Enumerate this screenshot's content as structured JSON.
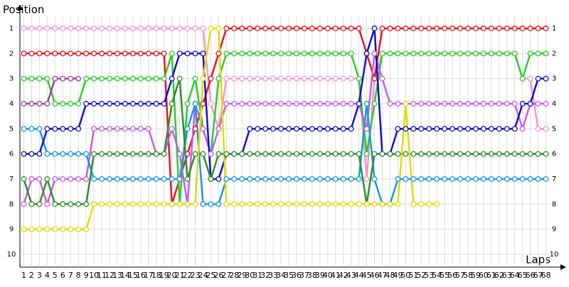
{
  "chart_data": {
    "type": "lap",
    "ylabel": "Position",
    "xlabel": "Laps",
    "x": [
      1,
      2,
      3,
      4,
      5,
      6,
      7,
      8,
      9,
      10,
      11,
      12,
      13,
      14,
      15,
      16,
      17,
      18,
      19,
      20,
      21,
      22,
      23,
      24,
      25,
      26,
      27,
      28,
      29,
      30,
      31,
      32,
      33,
      34,
      35,
      36,
      37,
      38,
      39,
      40,
      41,
      42,
      43,
      44,
      45,
      46,
      47,
      48,
      49,
      50,
      51,
      52,
      53,
      54,
      55,
      56,
      57,
      58,
      59,
      60,
      61,
      62,
      63,
      64,
      65,
      66,
      67,
      68
    ],
    "xlim": [
      0.5,
      68.5
    ],
    "ylim": [
      10.5,
      0.5
    ],
    "yticks": [
      1,
      2,
      3,
      4,
      5,
      6,
      7,
      8,
      9,
      10
    ],
    "grid": true,
    "series": [
      {
        "color": "#f49ac8",
        "values": [
          1,
          1,
          1,
          1,
          1,
          1,
          1,
          1,
          1,
          1,
          1,
          1,
          1,
          1,
          1,
          1,
          1,
          1,
          1,
          1,
          1,
          1,
          1,
          1,
          4,
          5,
          3,
          3,
          3,
          3,
          3,
          3,
          3,
          3,
          3,
          3,
          3,
          3,
          3,
          3,
          3,
          3,
          3,
          3,
          7,
          3,
          2,
          2,
          2,
          2,
          2,
          2,
          2,
          2,
          2,
          2,
          2,
          2,
          2,
          2,
          2,
          2,
          2,
          2,
          3,
          3,
          5,
          5
        ]
      },
      {
        "color": "#e8141e",
        "values": [
          2,
          2,
          2,
          2,
          2,
          2,
          2,
          2,
          2,
          2,
          2,
          2,
          2,
          2,
          2,
          2,
          2,
          2,
          2,
          8,
          7,
          6,
          5,
          4,
          3,
          2,
          1,
          1,
          1,
          1,
          1,
          1,
          1,
          1,
          1,
          1,
          1,
          1,
          1,
          1,
          1,
          1,
          1,
          1,
          2,
          3,
          1,
          1,
          1,
          1,
          1,
          1,
          1,
          1,
          1,
          1,
          1,
          1,
          1,
          1,
          1,
          1,
          1,
          1,
          1,
          1,
          1,
          1
        ]
      },
      {
        "color": "#2ecc2e",
        "values": [
          3,
          3,
          3,
          3,
          4,
          4,
          4,
          4,
          3,
          3,
          3,
          3,
          3,
          3,
          3,
          3,
          3,
          3,
          3,
          2,
          8,
          4,
          3,
          5,
          6,
          3,
          2,
          2,
          2,
          2,
          2,
          2,
          2,
          2,
          2,
          2,
          2,
          2,
          2,
          2,
          2,
          2,
          2,
          3,
          6,
          4,
          2,
          2,
          2,
          2,
          2,
          2,
          2,
          2,
          2,
          2,
          2,
          2,
          2,
          2,
          2,
          2,
          2,
          2,
          3,
          2,
          2,
          2
        ]
      },
      {
        "color": "#9c3f9c",
        "values": [
          4,
          4,
          4,
          4,
          3,
          3,
          3,
          3,
          null,
          null,
          null,
          null,
          null,
          null,
          null,
          null,
          null,
          null,
          null,
          null,
          null,
          null,
          null,
          null,
          null,
          null,
          null,
          null,
          null,
          null,
          null,
          null,
          null,
          null,
          null,
          null,
          null,
          null,
          null,
          null,
          null,
          null,
          null,
          null,
          null,
          null,
          null,
          null,
          null,
          null,
          null,
          null,
          null,
          null,
          null,
          null,
          null,
          null,
          null,
          null,
          null,
          null,
          null,
          null,
          null,
          null,
          null,
          null
        ]
      },
      {
        "color": "#c55ee8",
        "values": [
          8,
          7,
          7,
          8,
          7,
          7,
          7,
          7,
          7,
          5,
          5,
          5,
          5,
          5,
          5,
          5,
          5,
          6,
          6,
          5,
          6,
          8,
          4,
          5,
          6,
          5,
          4,
          4,
          4,
          4,
          4,
          4,
          4,
          4,
          4,
          4,
          4,
          4,
          4,
          4,
          4,
          4,
          4,
          4,
          5,
          2,
          3,
          4,
          4,
          4,
          4,
          4,
          4,
          4,
          4,
          4,
          4,
          4,
          4,
          4,
          4,
          4,
          4,
          4,
          5,
          4,
          4,
          4
        ]
      },
      {
        "color": "#1e96e6",
        "values": [
          5,
          5,
          5,
          6,
          6,
          6,
          6,
          6,
          6,
          7,
          7,
          7,
          7,
          7,
          7,
          7,
          7,
          7,
          7,
          7,
          7,
          5,
          4,
          8,
          8,
          8,
          7,
          7,
          7,
          7,
          7,
          7,
          7,
          7,
          7,
          7,
          7,
          7,
          7,
          7,
          7,
          7,
          7,
          7,
          4,
          7,
          8,
          8,
          7,
          7,
          7,
          7,
          7,
          7,
          7,
          7,
          7,
          7,
          7,
          7,
          7,
          7,
          7,
          7,
          7,
          7,
          7,
          7
        ]
      },
      {
        "color": "#1010d0",
        "values": [
          6,
          6,
          6,
          5,
          5,
          5,
          5,
          5,
          4,
          4,
          4,
          4,
          4,
          4,
          4,
          4,
          4,
          4,
          4,
          3,
          2,
          2,
          2,
          2,
          7,
          7,
          6,
          6,
          6,
          5,
          5,
          5,
          5,
          5,
          5,
          5,
          5,
          5,
          5,
          5,
          5,
          5,
          5,
          4,
          2,
          1,
          6,
          6,
          5,
          5,
          5,
          5,
          5,
          5,
          5,
          5,
          5,
          5,
          5,
          5,
          5,
          5,
          5,
          5,
          4,
          4,
          3,
          3
        ]
      },
      {
        "color": "#2e8f2e",
        "values": [
          7,
          8,
          8,
          7,
          8,
          8,
          8,
          8,
          8,
          6,
          6,
          6,
          6,
          6,
          6,
          6,
          6,
          6,
          6,
          4,
          3,
          7,
          6,
          6,
          7,
          6,
          6,
          6,
          6,
          6,
          6,
          6,
          6,
          6,
          6,
          6,
          6,
          6,
          6,
          6,
          6,
          6,
          6,
          6,
          8,
          6,
          6,
          6,
          6,
          6,
          6,
          6,
          6,
          6,
          6,
          6,
          6,
          6,
          6,
          6,
          6,
          6,
          6,
          6,
          6,
          6,
          6,
          6
        ]
      },
      {
        "color": "#dede0a",
        "values": [
          9,
          9,
          9,
          9,
          9,
          9,
          9,
          9,
          9,
          8,
          8,
          8,
          8,
          8,
          8,
          8,
          8,
          8,
          8,
          8,
          8,
          8,
          8,
          3,
          1,
          1,
          8,
          8,
          8,
          8,
          8,
          8,
          8,
          8,
          8,
          8,
          8,
          8,
          8,
          8,
          8,
          8,
          8,
          8,
          8,
          8,
          8,
          8,
          8,
          4,
          8,
          8,
          8,
          8,
          null,
          null,
          null,
          null,
          null,
          null,
          null,
          null,
          null,
          null,
          null,
          null,
          null,
          null
        ]
      }
    ]
  }
}
